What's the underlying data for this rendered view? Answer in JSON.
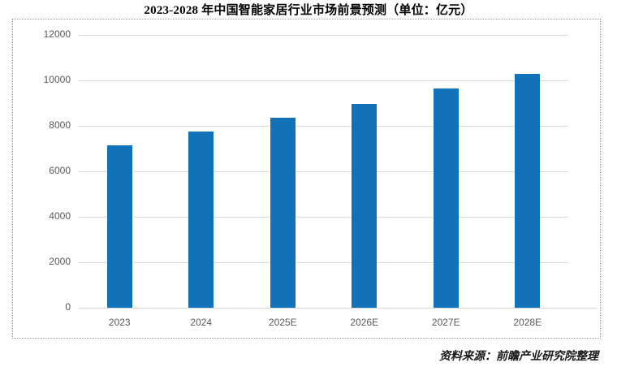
{
  "source_note": "资料来源：前瞻产业研究院整理",
  "colors": {
    "bar": "#1272b9",
    "gridline": "#dcdcdc",
    "axis_label": "#595959",
    "border": "#9e9e9e",
    "title": "#000000"
  },
  "chart_data": {
    "type": "bar",
    "title": "2023-2028 年中国智能家居行业市场前景预测（单位：亿元）",
    "categories": [
      "2023",
      "2024",
      "2025E",
      "2026E",
      "2027E",
      "2028E"
    ],
    "values": [
      7160,
      7740,
      8360,
      8950,
      9660,
      10270
    ],
    "xlabel": "",
    "ylabel": "",
    "ylim": [
      0,
      12000
    ],
    "yticks": [
      0,
      2000,
      4000,
      6000,
      8000,
      10000,
      12000
    ],
    "grid": true,
    "legend": false,
    "bar_color": "#1272b9"
  }
}
